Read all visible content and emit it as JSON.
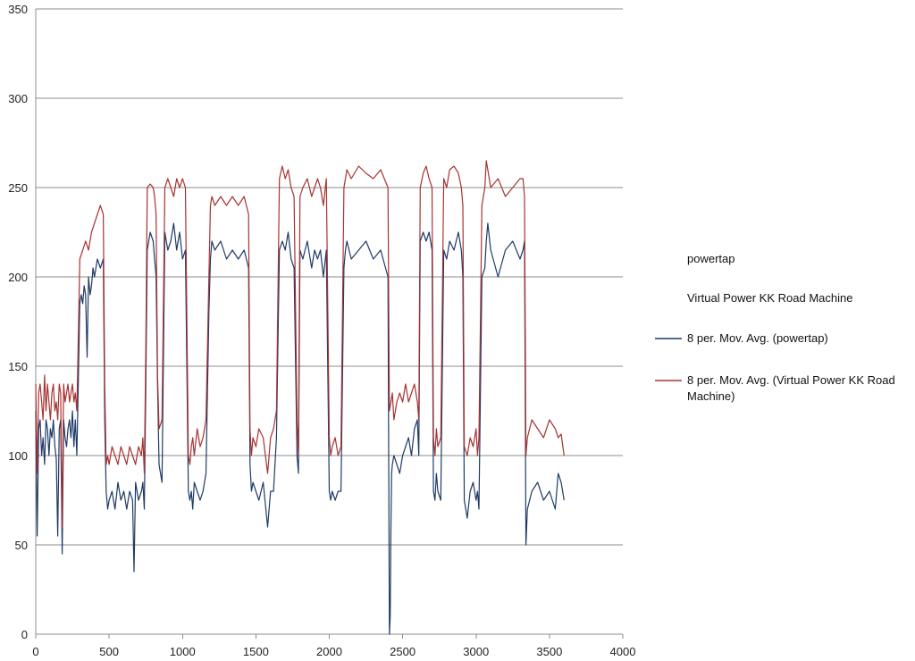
{
  "chart_data": {
    "type": "line",
    "title": "",
    "xlabel": "",
    "ylabel": "",
    "xlim": [
      0,
      4000
    ],
    "ylim": [
      0,
      350
    ],
    "x_ticks": [
      0,
      500,
      1000,
      1500,
      2000,
      2500,
      3000,
      3500,
      4000
    ],
    "y_ticks": [
      0,
      50,
      100,
      150,
      200,
      250,
      300,
      350
    ],
    "grid": "horizontal",
    "legend_position": "right",
    "legend": [
      {
        "label": "powertap",
        "color": "",
        "marker": "none"
      },
      {
        "label": "Virtual Power KK Road Machine",
        "color": "",
        "marker": "none"
      },
      {
        "label": "8 per. Mov. Avg. (powertap)",
        "color": "#1f3a68",
        "marker": "line"
      },
      {
        "label": "8 per. Mov. Avg. (Virtual Power KK Road Machine)",
        "label_lines": [
          "8 per. Mov. Avg. (Virtual Power KK Road",
          "Machine)"
        ],
        "color": "#a83232",
        "marker": "line"
      }
    ],
    "series": [
      {
        "name": "8 per. Mov. Avg. (powertap)",
        "color": "#1f3a68",
        "x": [
          0,
          10,
          20,
          30,
          40,
          50,
          60,
          70,
          80,
          90,
          100,
          110,
          120,
          130,
          140,
          150,
          160,
          170,
          180,
          190,
          200,
          210,
          220,
          230,
          240,
          250,
          260,
          270,
          280,
          290,
          300,
          310,
          320,
          330,
          340,
          350,
          360,
          370,
          380,
          390,
          400,
          420,
          440,
          460,
          470,
          480,
          490,
          500,
          520,
          540,
          560,
          580,
          600,
          620,
          640,
          660,
          670,
          680,
          700,
          720,
          730,
          740,
          750,
          760,
          780,
          800,
          810,
          820,
          830,
          840,
          860,
          880,
          900,
          920,
          940,
          960,
          980,
          1000,
          1020,
          1040,
          1050,
          1060,
          1070,
          1080,
          1100,
          1120,
          1140,
          1160,
          1180,
          1190,
          1200,
          1220,
          1260,
          1300,
          1340,
          1380,
          1420,
          1450,
          1460,
          1470,
          1480,
          1500,
          1520,
          1550,
          1580,
          1600,
          1620,
          1640,
          1660,
          1680,
          1700,
          1720,
          1740,
          1760,
          1780,
          1790,
          1800,
          1820,
          1850,
          1880,
          1900,
          1920,
          1940,
          1960,
          1980,
          2000,
          2010,
          2020,
          2040,
          2060,
          2080,
          2100,
          2110,
          2120,
          2150,
          2200,
          2250,
          2300,
          2350,
          2400,
          2410,
          2415,
          2420,
          2425,
          2430,
          2440,
          2460,
          2480,
          2500,
          2520,
          2540,
          2560,
          2580,
          2600,
          2610,
          2620,
          2640,
          2660,
          2680,
          2700,
          2710,
          2720,
          2730,
          2740,
          2760,
          2780,
          2800,
          2820,
          2850,
          2880,
          2900,
          2910,
          2920,
          2940,
          2960,
          2980,
          3000,
          3010,
          3020,
          3040,
          3060,
          3070,
          3080,
          3100,
          3150,
          3200,
          3250,
          3300,
          3320,
          3330,
          3340,
          3350,
          3380,
          3420,
          3460,
          3500,
          3540,
          3560,
          3580,
          3600
        ],
        "y": [
          125,
          55,
          115,
          120,
          100,
          110,
          95,
          120,
          115,
          100,
          115,
          110,
          120,
          105,
          98,
          55,
          115,
          120,
          45,
          120,
          110,
          105,
          115,
          120,
          110,
          125,
          105,
          120,
          100,
          140,
          185,
          190,
          185,
          195,
          190,
          155,
          200,
          190,
          195,
          205,
          200,
          210,
          205,
          210,
          120,
          80,
          70,
          75,
          80,
          70,
          85,
          75,
          80,
          70,
          80,
          75,
          35,
          85,
          75,
          80,
          85,
          70,
          140,
          215,
          225,
          220,
          210,
          200,
          140,
          95,
          85,
          225,
          215,
          220,
          230,
          215,
          225,
          210,
          215,
          80,
          75,
          80,
          70,
          85,
          80,
          75,
          80,
          90,
          180,
          210,
          220,
          215,
          220,
          210,
          215,
          210,
          215,
          205,
          95,
          80,
          85,
          80,
          75,
          85,
          60,
          80,
          80,
          110,
          215,
          220,
          215,
          225,
          210,
          205,
          100,
          90,
          215,
          210,
          220,
          205,
          215,
          210,
          215,
          200,
          215,
          80,
          75,
          80,
          75,
          80,
          80,
          205,
          215,
          220,
          210,
          215,
          220,
          210,
          215,
          200,
          0,
          10,
          60,
          90,
          95,
          100,
          95,
          90,
          100,
          105,
          110,
          100,
          115,
          120,
          100,
          220,
          225,
          220,
          225,
          215,
          80,
          75,
          90,
          80,
          75,
          215,
          210,
          220,
          215,
          225,
          215,
          200,
          75,
          65,
          80,
          85,
          75,
          80,
          70,
          200,
          205,
          220,
          230,
          215,
          200,
          215,
          220,
          210,
          215,
          220,
          50,
          70,
          80,
          85,
          75,
          80,
          70,
          90,
          85,
          75
        ]
      },
      {
        "name": "8 per. Mov. Avg. (Virtual Power KK Road Machine)",
        "color": "#a83232",
        "x": [
          0,
          10,
          20,
          30,
          40,
          50,
          60,
          70,
          80,
          90,
          100,
          110,
          120,
          130,
          140,
          150,
          160,
          170,
          180,
          190,
          200,
          210,
          220,
          230,
          240,
          250,
          260,
          270,
          280,
          290,
          300,
          320,
          340,
          360,
          380,
          400,
          420,
          440,
          460,
          470,
          480,
          490,
          500,
          520,
          540,
          560,
          580,
          600,
          620,
          640,
          660,
          680,
          700,
          720,
          730,
          740,
          750,
          760,
          780,
          800,
          810,
          820,
          830,
          840,
          860,
          880,
          900,
          920,
          940,
          960,
          980,
          1000,
          1020,
          1040,
          1050,
          1060,
          1070,
          1080,
          1100,
          1120,
          1140,
          1160,
          1180,
          1190,
          1200,
          1220,
          1260,
          1300,
          1340,
          1380,
          1420,
          1450,
          1460,
          1470,
          1480,
          1500,
          1520,
          1550,
          1580,
          1600,
          1620,
          1640,
          1660,
          1680,
          1700,
          1720,
          1740,
          1760,
          1780,
          1790,
          1800,
          1820,
          1850,
          1880,
          1900,
          1920,
          1940,
          1960,
          1980,
          2000,
          2010,
          2020,
          2040,
          2060,
          2080,
          2100,
          2110,
          2120,
          2150,
          2200,
          2250,
          2300,
          2350,
          2400,
          2410,
          2420,
          2430,
          2440,
          2460,
          2480,
          2500,
          2520,
          2540,
          2560,
          2580,
          2600,
          2610,
          2620,
          2640,
          2660,
          2680,
          2700,
          2710,
          2720,
          2730,
          2740,
          2760,
          2780,
          2800,
          2820,
          2850,
          2880,
          2900,
          2910,
          2920,
          2940,
          2960,
          2980,
          3000,
          3010,
          3020,
          3040,
          3060,
          3070,
          3080,
          3100,
          3150,
          3200,
          3250,
          3300,
          3320,
          3330,
          3340,
          3350,
          3380,
          3420,
          3460,
          3500,
          3540,
          3560,
          3580,
          3600
        ],
        "y": [
          140,
          90,
          135,
          140,
          130,
          120,
          145,
          125,
          140,
          130,
          120,
          135,
          140,
          125,
          130,
          120,
          140,
          135,
          60,
          140,
          130,
          135,
          140,
          130,
          135,
          140,
          130,
          135,
          125,
          165,
          210,
          215,
          220,
          215,
          225,
          230,
          235,
          240,
          235,
          140,
          95,
          100,
          95,
          105,
          100,
          95,
          105,
          100,
          95,
          105,
          100,
          95,
          105,
          100,
          110,
          90,
          160,
          250,
          252,
          250,
          245,
          235,
          145,
          115,
          120,
          250,
          255,
          250,
          245,
          255,
          250,
          255,
          250,
          100,
          95,
          105,
          110,
          100,
          115,
          105,
          110,
          120,
          200,
          240,
          245,
          240,
          245,
          240,
          245,
          240,
          245,
          235,
          115,
          100,
          110,
          105,
          115,
          110,
          90,
          110,
          115,
          125,
          255,
          262,
          255,
          260,
          250,
          245,
          120,
          100,
          245,
          250,
          255,
          245,
          250,
          255,
          250,
          240,
          255,
          110,
          100,
          105,
          110,
          100,
          105,
          250,
          255,
          260,
          255,
          262,
          258,
          255,
          260,
          250,
          125,
          130,
          135,
          120,
          130,
          135,
          130,
          140,
          130,
          135,
          140,
          130,
          120,
          250,
          258,
          262,
          255,
          250,
          110,
          100,
          115,
          105,
          110,
          255,
          250,
          260,
          262,
          258,
          250,
          240,
          105,
          100,
          110,
          105,
          115,
          100,
          110,
          240,
          250,
          265,
          260,
          250,
          255,
          245,
          250,
          255,
          255,
          245,
          100,
          110,
          120,
          115,
          110,
          120,
          115,
          110,
          112,
          100
        ]
      }
    ]
  }
}
